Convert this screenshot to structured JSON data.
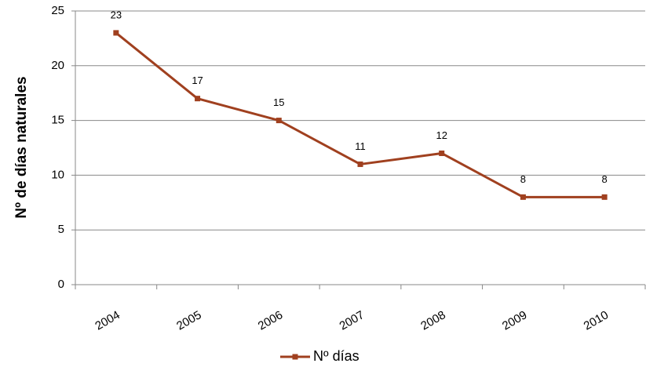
{
  "chart_data": {
    "type": "line",
    "ylabel": "Nº de días naturales",
    "categories": [
      "2004",
      "2005",
      "2006",
      "2007",
      "2008",
      "2009",
      "2010"
    ],
    "series": [
      {
        "name": "Nº días",
        "color": "#a0401f",
        "values": [
          23,
          17,
          15,
          11,
          12,
          8,
          8
        ]
      }
    ],
    "ylim": [
      0,
      25
    ],
    "yticks": [
      0,
      5,
      10,
      15,
      20,
      25
    ],
    "grid": true,
    "legend": "bottom",
    "data_labels": true
  }
}
